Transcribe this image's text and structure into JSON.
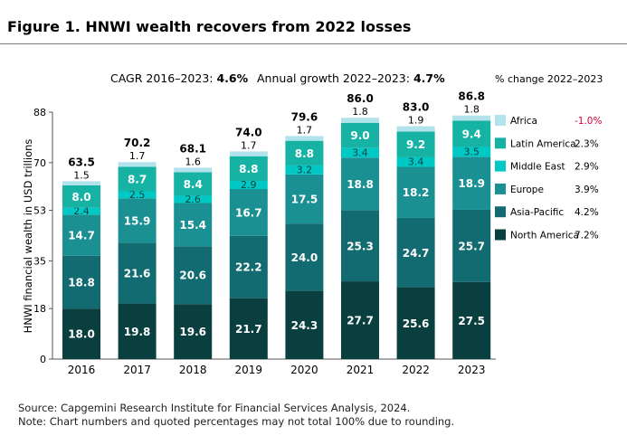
{
  "title": "Figure 1. HNWI wealth recovers from 2022 losses",
  "cagr": {
    "label": "CAGR 2016–2023: ",
    "value": "4.6%"
  },
  "annual": {
    "label": "Annual growth 2022–2023: ",
    "value": "4.7%"
  },
  "legend_header": "% change 2022–2023",
  "source": "Source: Capgemini Research Institute for Financial Services Analysis, 2024.",
  "note": "Note: Chart numbers and quoted percentages may not total 100% due to rounding.",
  "colors": {
    "North America": "#0a3f3f",
    "Asia-Pacific": "#126b70",
    "Europe": "#1a9093",
    "Middle East": "#00c8c4",
    "Latin America": "#16b3a4",
    "Africa": "#b2e3ec",
    "negative": "#e0003c"
  },
  "chart_data": {
    "type": "bar",
    "stacked": true,
    "categories": [
      "2016",
      "2017",
      "2018",
      "2019",
      "2020",
      "2021",
      "2022",
      "2023"
    ],
    "ylabel": "HNWI financial wealth in USD trillions",
    "ylim": [
      0,
      88
    ],
    "yticks": [
      "0",
      "18",
      "35",
      "53",
      "70",
      "88"
    ],
    "totals": [
      "63.5",
      "70.2",
      "68.1",
      "74.0",
      "79.6",
      "86.0",
      "83.0",
      "86.8"
    ],
    "series": [
      {
        "name": "North America",
        "change": "7.2%",
        "values": [
          18.0,
          19.8,
          19.6,
          21.7,
          24.3,
          27.7,
          25.6,
          27.5
        ]
      },
      {
        "name": "Asia-Pacific",
        "change": "4.2%",
        "values": [
          18.8,
          21.6,
          20.6,
          22.2,
          24.0,
          25.3,
          24.7,
          25.7
        ]
      },
      {
        "name": "Europe",
        "change": "3.9%",
        "values": [
          14.7,
          15.9,
          15.4,
          16.7,
          17.5,
          18.8,
          18.2,
          18.9
        ]
      },
      {
        "name": "Middle East",
        "change": "2.9%",
        "values": [
          2.4,
          2.5,
          2.6,
          2.9,
          3.2,
          3.4,
          3.4,
          3.5
        ]
      },
      {
        "name": "Latin America",
        "change": "2.3%",
        "values": [
          8.0,
          8.7,
          8.4,
          8.8,
          8.8,
          9.0,
          9.2,
          9.4
        ]
      },
      {
        "name": "Africa",
        "change": "-1.0%",
        "values": [
          1.5,
          1.7,
          1.6,
          1.7,
          1.7,
          1.8,
          1.9,
          1.8
        ]
      }
    ],
    "legend_order": [
      "Africa",
      "Latin America",
      "Middle East",
      "Europe",
      "Asia-Pacific",
      "North America"
    ],
    "grid": false,
    "legend_position": "right"
  }
}
